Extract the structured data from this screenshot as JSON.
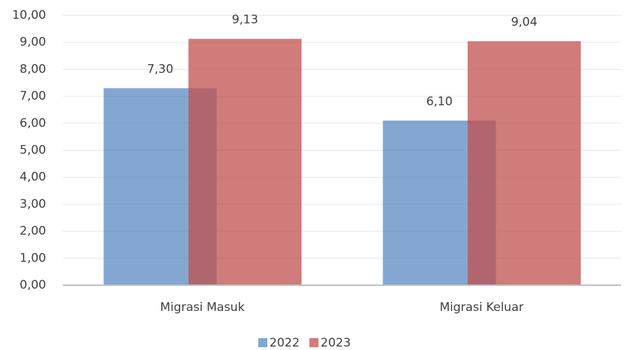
{
  "chart_data": {
    "type": "bar",
    "categories": [
      "Migrasi Masuk",
      "Migrasi Keluar"
    ],
    "series": [
      {
        "name": "2022",
        "color": "#4f81bd",
        "values": [
          7.3,
          6.1
        ],
        "value_labels": [
          "7,30",
          "6,10"
        ]
      },
      {
        "name": "2023",
        "color": "#c0504d",
        "values": [
          9.13,
          9.04
        ],
        "value_labels": [
          "9,13",
          "9,04"
        ]
      }
    ],
    "ylim": [
      0,
      10
    ],
    "yticks": [
      {
        "value": 0,
        "label": "0,00"
      },
      {
        "value": 1,
        "label": "1,00"
      },
      {
        "value": 2,
        "label": "2,00"
      },
      {
        "value": 3,
        "label": "3,00"
      },
      {
        "value": 4,
        "label": "4,00"
      },
      {
        "value": 5,
        "label": "5,00"
      },
      {
        "value": 6,
        "label": "6,00"
      },
      {
        "value": 7,
        "label": "7,00"
      },
      {
        "value": 8,
        "label": "8,00"
      },
      {
        "value": 9,
        "label": "9,00"
      },
      {
        "value": 10,
        "label": "10,00"
      }
    ],
    "grid": true,
    "legend": "bottom"
  }
}
